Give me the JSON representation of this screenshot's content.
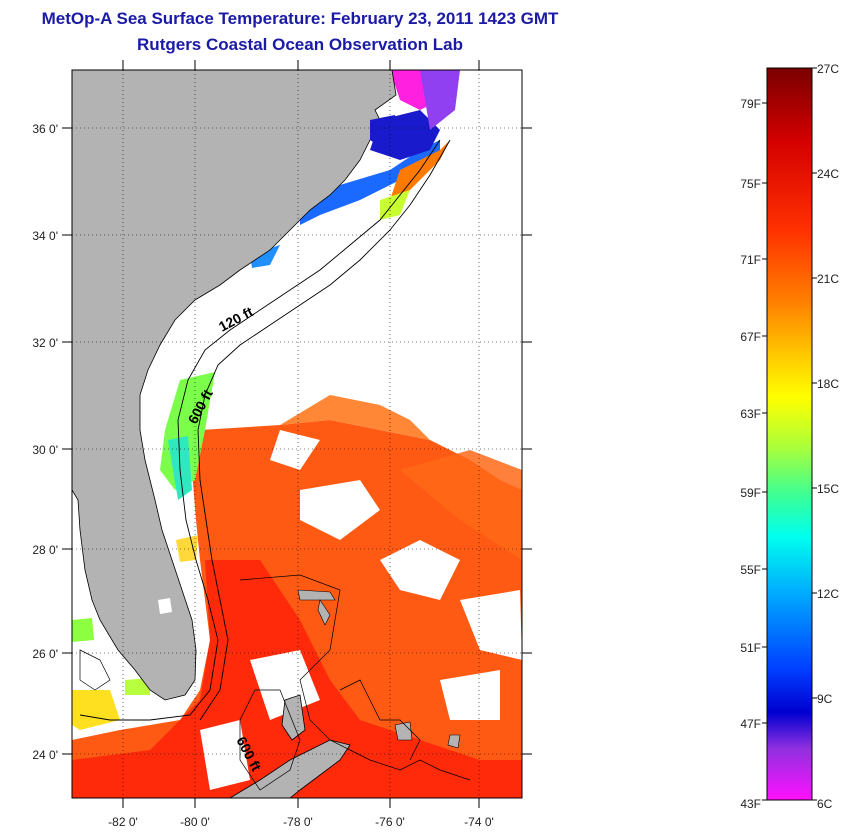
{
  "title": "MetOp-A Sea Surface Temperature:  February 23, 2011 1423 GMT",
  "subtitle": "Rutgers Coastal Ocean Observation Lab",
  "map": {
    "lon_ticks": [
      "-82 0'",
      "-80 0'",
      "-78 0'",
      "-76 0'",
      "-74 0'"
    ],
    "lat_ticks": [
      "36 0'",
      "34 0'",
      "32 0'",
      "30 0'",
      "28 0'",
      "26 0'",
      "24 0'"
    ],
    "depth_labels": [
      "120 ft",
      "600 ft",
      "600 ft"
    ]
  },
  "colorbar": {
    "fahrenheit_labels": [
      "79F",
      "75F",
      "71F",
      "67F",
      "63F",
      "59F",
      "55F",
      "51F",
      "47F",
      "43F"
    ],
    "celsius_labels": [
      "27C",
      "24C",
      "21C",
      "18C",
      "15C",
      "12C",
      "9C",
      "6C"
    ],
    "colors": [
      "#7a0000",
      "#c80000",
      "#ff2a00",
      "#ff7a00",
      "#ffc800",
      "#ffff00",
      "#a8ff3c",
      "#3cff9a",
      "#00ffff",
      "#00a0ff",
      "#0040ff",
      "#0000c8",
      "#8a2be2",
      "#ff00ff"
    ]
  }
}
